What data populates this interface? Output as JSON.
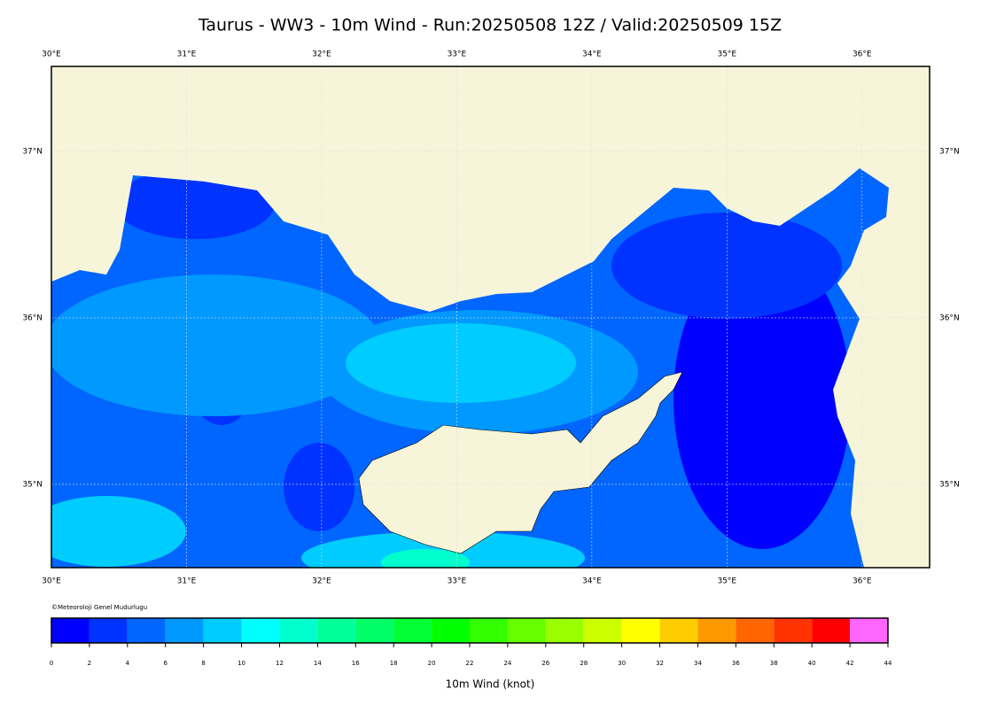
{
  "title": "Taurus - WW3 - 10m Wind - Run:20250508 12Z / Valid:20250509 15Z",
  "map": {
    "xlim": [
      30,
      36.5
    ],
    "ylim": [
      34.5,
      37.51
    ],
    "lon_ticks": [
      {
        "value": 30,
        "label": "30°E"
      },
      {
        "value": 31,
        "label": "31°E"
      },
      {
        "value": 32,
        "label": "32°E"
      },
      {
        "value": 33,
        "label": "33°E"
      },
      {
        "value": 34,
        "label": "34°E"
      },
      {
        "value": 35,
        "label": "35°E"
      },
      {
        "value": 36,
        "label": "36°E"
      }
    ],
    "lat_ticks": [
      {
        "value": 35,
        "label": "35°N"
      },
      {
        "value": 36,
        "label": "36°N"
      },
      {
        "value": 37,
        "label": "37°N"
      }
    ],
    "grid": true
  },
  "credit": "©Meteoroloji Genel Mudurlugu",
  "colorbar": {
    "label": "10m Wind (knot)",
    "ticks": [
      0,
      2,
      4,
      6,
      8,
      10,
      12,
      14,
      16,
      18,
      20,
      22,
      24,
      26,
      28,
      30,
      32,
      34,
      36,
      38,
      40,
      42,
      44
    ],
    "colors": [
      "#0000ff",
      "#0033ff",
      "#0066ff",
      "#0099ff",
      "#00ccff",
      "#00ffff",
      "#00ffcc",
      "#00ff99",
      "#00ff66",
      "#00ff33",
      "#00ff00",
      "#33ff00",
      "#66ff00",
      "#99ff00",
      "#ccff00",
      "#ffff00",
      "#ffcc00",
      "#ff9900",
      "#ff6600",
      "#ff3300",
      "#ff0000",
      "#ff66ff"
    ]
  }
}
